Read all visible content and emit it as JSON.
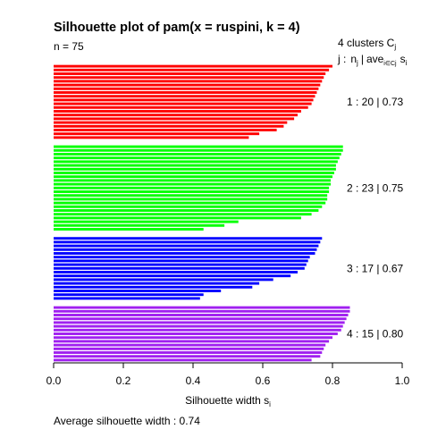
{
  "chart_data": {
    "type": "bar",
    "orientation": "horizontal",
    "title": "Silhouette plot of pam(x = ruspini, k = 4)",
    "n_label": "n = 75",
    "header_line1": "4  clusters  C",
    "header_line1_sub": "j",
    "header_line2": {
      "j": "j :",
      "n": "n",
      "n_sub": "j",
      "sep": "|",
      "ave": "ave",
      "ave_sub": "i∈Cj",
      "s": "s",
      "s_sub": "i"
    },
    "xlabel": "Silhouette width s",
    "xlabel_sub": "i",
    "xlim": [
      0,
      1
    ],
    "xticks": [
      "0.0",
      "0.2",
      "0.4",
      "0.6",
      "0.8",
      "1.0"
    ],
    "average_text": "Average silhouette width :  0.74",
    "clusters": [
      {
        "id": 1,
        "label": "1 :   20  |  0.73",
        "color": "#ff0000",
        "values": [
          0.8,
          0.79,
          0.78,
          0.775,
          0.77,
          0.765,
          0.76,
          0.755,
          0.75,
          0.745,
          0.74,
          0.73,
          0.71,
          0.7,
          0.69,
          0.67,
          0.66,
          0.64,
          0.59,
          0.56
        ]
      },
      {
        "id": 2,
        "label": "2 :   23  |  0.75",
        "color": "#00ff00",
        "values": [
          0.83,
          0.83,
          0.825,
          0.82,
          0.815,
          0.81,
          0.81,
          0.805,
          0.8,
          0.795,
          0.795,
          0.79,
          0.79,
          0.785,
          0.785,
          0.78,
          0.77,
          0.76,
          0.74,
          0.71,
          0.53,
          0.49,
          0.43
        ]
      },
      {
        "id": 3,
        "label": "3 :   17  |  0.67",
        "color": "#0000ff",
        "values": [
          0.77,
          0.765,
          0.76,
          0.755,
          0.75,
          0.735,
          0.73,
          0.725,
          0.72,
          0.7,
          0.68,
          0.63,
          0.59,
          0.57,
          0.48,
          0.43,
          0.42
        ]
      },
      {
        "id": 4,
        "label": "4 :   15  |  0.80",
        "color": "#a020f0",
        "values": [
          0.85,
          0.85,
          0.845,
          0.84,
          0.835,
          0.83,
          0.825,
          0.815,
          0.8,
          0.79,
          0.78,
          0.775,
          0.77,
          0.765,
          0.74
        ]
      }
    ]
  }
}
